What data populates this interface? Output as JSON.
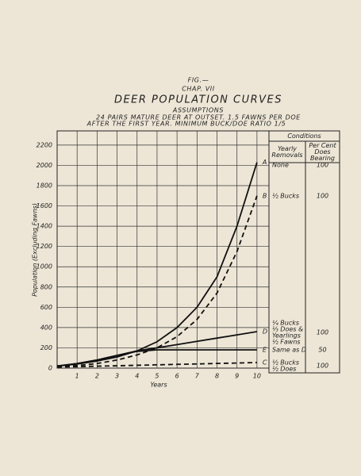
{
  "chart_data": {
    "type": "line",
    "fig_label": "FIG.—",
    "chapter": "CHAP. VII",
    "title": "DEER POPULATION CURVES",
    "subtitle": "ASSUMPTIONS",
    "assumptions": [
      "24 PAIRS MATURE DEER AT OUTSET. 1.5 FAWNS PER DOE",
      "AFTER THE FIRST YEAR. MINIMUM BUCK/DOE RATIO 1/5"
    ],
    "y_label": "Population (Excluding Fawns)",
    "x_label": "Years",
    "x": [
      0,
      1,
      2,
      3,
      4,
      5,
      6,
      7,
      8,
      9,
      10
    ],
    "xlim": [
      0,
      10.6
    ],
    "xticks": [
      1,
      2,
      3,
      4,
      5,
      6,
      7,
      8,
      9,
      10
    ],
    "ylim": [
      0,
      2340
    ],
    "yticks": [
      0,
      200,
      400,
      600,
      800,
      1000,
      1200,
      1400,
      1600,
      1800,
      2000,
      2200
    ],
    "grid": true,
    "series": [
      {
        "name": "A",
        "color": "#111",
        "dash": false,
        "values": [
          20,
          40,
          70,
          110,
          170,
          260,
          400,
          600,
          900,
          1400,
          2030
        ]
      },
      {
        "name": "B",
        "color": "#111",
        "dash": true,
        "values": [
          15,
          25,
          45,
          80,
          130,
          200,
          310,
          480,
          740,
          1150,
          1700
        ]
      },
      {
        "name": "D",
        "color": "#111",
        "dash": false,
        "values": [
          20,
          45,
          80,
          125,
          170,
          200,
          232,
          264,
          296,
          328,
          360
        ]
      },
      {
        "name": "E",
        "color": "#111",
        "dash": false,
        "values": [
          20,
          45,
          80,
          125,
          165,
          180,
          180,
          180,
          180,
          180,
          180
        ]
      },
      {
        "name": "C",
        "color": "#111",
        "dash": true,
        "values": [
          10,
          14,
          19,
          23,
          28,
          32,
          37,
          41,
          46,
          50,
          55
        ]
      }
    ],
    "table": {
      "title": "Conditions",
      "columns": [
        [
          "Yearly",
          "Removals"
        ],
        [
          "Per Cent",
          "Does",
          "Bearing"
        ]
      ],
      "rows": [
        {
          "removals": [
            "None"
          ],
          "bearing": 100
        },
        {
          "removals": [
            "½ Bucks"
          ],
          "bearing": 100
        },
        {
          "removals": [
            "¼ Bucks",
            "⅓ Does &",
            "Yearlings",
            "½ Fawns"
          ],
          "bearing": 100
        },
        {
          "removals": [
            "Same as D"
          ],
          "bearing": 50
        },
        {
          "removals": [
            "½ Bucks",
            "½ Does"
          ],
          "bearing": 100
        }
      ]
    }
  }
}
